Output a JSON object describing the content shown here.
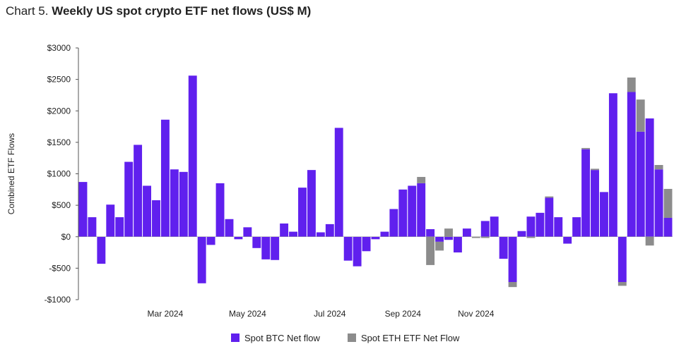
{
  "header": {
    "prefix": "Chart 5. ",
    "title": "Weekly US spot crypto ETF net flows (US$ M)"
  },
  "chart_data": {
    "type": "bar",
    "stacked": true,
    "title": "Weekly US spot crypto ETF net flows (US$ M)",
    "ylabel": "Combined ETF Flows",
    "xlabel": "",
    "ylim": [
      -1000,
      3000
    ],
    "yticks": [
      3000,
      2500,
      2000,
      1500,
      1000,
      500,
      0,
      -500,
      -1000
    ],
    "ytick_labels": [
      "$3000",
      "$2500",
      "$2000",
      "$1500",
      "$1000",
      "$500",
      "$0",
      "-$500",
      "-$1000"
    ],
    "x_month_labels": [
      {
        "label": "Mar 2024",
        "index": 9.5
      },
      {
        "label": "May 2024",
        "index": 18.5
      },
      {
        "label": "Jul 2024",
        "index": 27.5
      },
      {
        "label": "Sep 2024",
        "index": 35.5
      },
      {
        "label": "Nov 2024",
        "index": 43.5
      }
    ],
    "colors": {
      "btc": "#6020ee",
      "eth": "#8c8c8c",
      "grid": "#cccccc",
      "axis": "#555555"
    },
    "series": [
      {
        "name": "Spot BTC Net flow",
        "values": [
          870,
          310,
          -430,
          510,
          310,
          1190,
          1460,
          810,
          580,
          1860,
          1070,
          1030,
          2560,
          -740,
          -130,
          850,
          280,
          -40,
          150,
          -180,
          -360,
          -370,
          210,
          80,
          780,
          1060,
          70,
          200,
          1730,
          -380,
          -470,
          -230,
          -40,
          80,
          440,
          750,
          810,
          850,
          120,
          -80,
          -50,
          -250,
          130,
          0,
          250,
          320,
          -350,
          -720,
          90,
          320,
          380,
          620,
          310,
          -110,
          310,
          1390,
          1060,
          710,
          2280,
          -720,
          2300,
          1670,
          1880,
          1070,
          300
        ]
      },
      {
        "name": "Spot ETH ETF Net Flow",
        "values": [
          0,
          0,
          0,
          0,
          0,
          0,
          0,
          0,
          0,
          0,
          0,
          0,
          0,
          0,
          0,
          0,
          0,
          0,
          0,
          0,
          0,
          0,
          0,
          0,
          0,
          0,
          0,
          0,
          0,
          0,
          0,
          0,
          0,
          0,
          0,
          0,
          0,
          100,
          -450,
          -140,
          130,
          0,
          0,
          -20,
          -20,
          0,
          0,
          -80,
          0,
          -20,
          0,
          20,
          0,
          0,
          0,
          20,
          20,
          0,
          0,
          -60,
          230,
          510,
          -140,
          70,
          460
        ]
      }
    ],
    "legend": {
      "position": "bottom-center",
      "entries": [
        "Spot BTC Net flow",
        "Spot ETH ETF Net Flow"
      ]
    }
  }
}
